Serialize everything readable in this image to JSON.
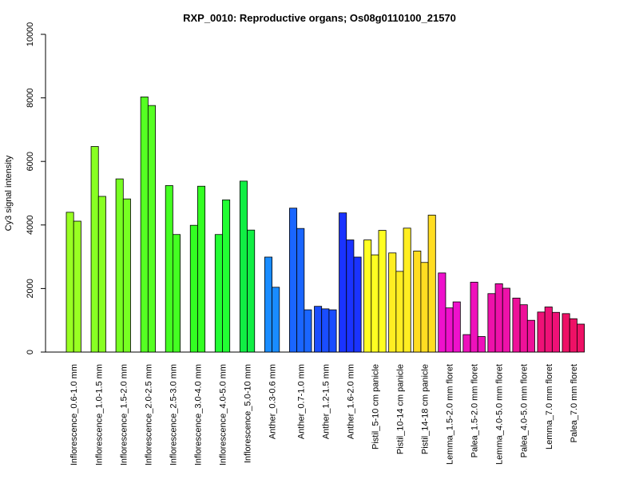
{
  "chart_data": {
    "type": "bar",
    "title": "RXP_0010: Reproductive organs; Os08g0110100_21570",
    "xlabel": "",
    "ylabel": "Cy3 signal intensity",
    "ylim": [
      0,
      10000
    ],
    "yticks": [
      0,
      2000,
      4000,
      6000,
      8000,
      10000
    ],
    "grid": false,
    "legend": "none",
    "groups": [
      {
        "label": "Inflorescence_0.6-1.0 mm",
        "color": "#99ff22",
        "values": [
          4400,
          4120
        ]
      },
      {
        "label": "Inflorescence_1.0-1.5 mm",
        "color": "#88ff22",
        "values": [
          6470,
          4900
        ]
      },
      {
        "label": "Inflorescence_1.5-2.0 mm",
        "color": "#77ff22",
        "values": [
          5450,
          4820
        ]
      },
      {
        "label": "Inflorescence_2.0-2.5 mm",
        "color": "#55ff22",
        "values": [
          8030,
          7760
        ]
      },
      {
        "label": "Inflorescence_2.5-3.0 mm",
        "color": "#44ff22",
        "values": [
          5240,
          3700
        ]
      },
      {
        "label": "Inflorescence_3.0-4.0 mm",
        "color": "#33ff22",
        "values": [
          3990,
          5220
        ]
      },
      {
        "label": "Inflorescence_4.0-5.0 mm",
        "color": "#22ff33",
        "values": [
          3700,
          4790
        ]
      },
      {
        "label": "Inflorescence_5.0-10 mm",
        "color": "#11ee44",
        "values": [
          5380,
          3840
        ]
      },
      {
        "label": "Anther_0.3-0.6 mm",
        "color": "#1a8cff",
        "values": [
          2990,
          2040
        ]
      },
      {
        "label": "Anther_0.7-1.0 mm",
        "color": "#1a66ff",
        "values": [
          4530,
          3890,
          1330
        ]
      },
      {
        "label": "Anther_1.2-1.5 mm",
        "color": "#1a4dff",
        "values": [
          1440,
          1360,
          1330
        ]
      },
      {
        "label": "Anther_1.6-2.0 mm",
        "color": "#1a33ff",
        "values": [
          4380,
          3530,
          2990
        ]
      },
      {
        "label": "Pistil_5-10 cm panicle",
        "color": "#ffff22",
        "values": [
          3530,
          3060,
          3830
        ]
      },
      {
        "label": "Pistil_10-14 cm panicle",
        "color": "#ffee22",
        "values": [
          3120,
          2540,
          3900
        ]
      },
      {
        "label": "Pistil_14-18 cm panicle",
        "color": "#ffdd22",
        "values": [
          3180,
          2820,
          4310
        ]
      },
      {
        "label": "Lemma_1.5-2.0 mm floret",
        "color": "#ee11cc",
        "values": [
          2490,
          1390,
          1580
        ]
      },
      {
        "label": "Palea_1.5-2.0 mm floret",
        "color": "#ee11bb",
        "values": [
          550,
          2200,
          490
        ]
      },
      {
        "label": "Lemma_4.0-5.0 mm floret",
        "color": "#ee11aa",
        "values": [
          1840,
          2150,
          2010
        ]
      },
      {
        "label": "Palea_4.0-5.0 mm floret",
        "color": "#ee1199",
        "values": [
          1700,
          1490,
          1000
        ]
      },
      {
        "label": "Lemma_7.0 mm floret",
        "color": "#ee1177",
        "values": [
          1260,
          1420,
          1250
        ]
      },
      {
        "label": "Palea_7.0 mm floret",
        "color": "#ee1166",
        "values": [
          1210,
          1050,
          880
        ]
      }
    ]
  }
}
